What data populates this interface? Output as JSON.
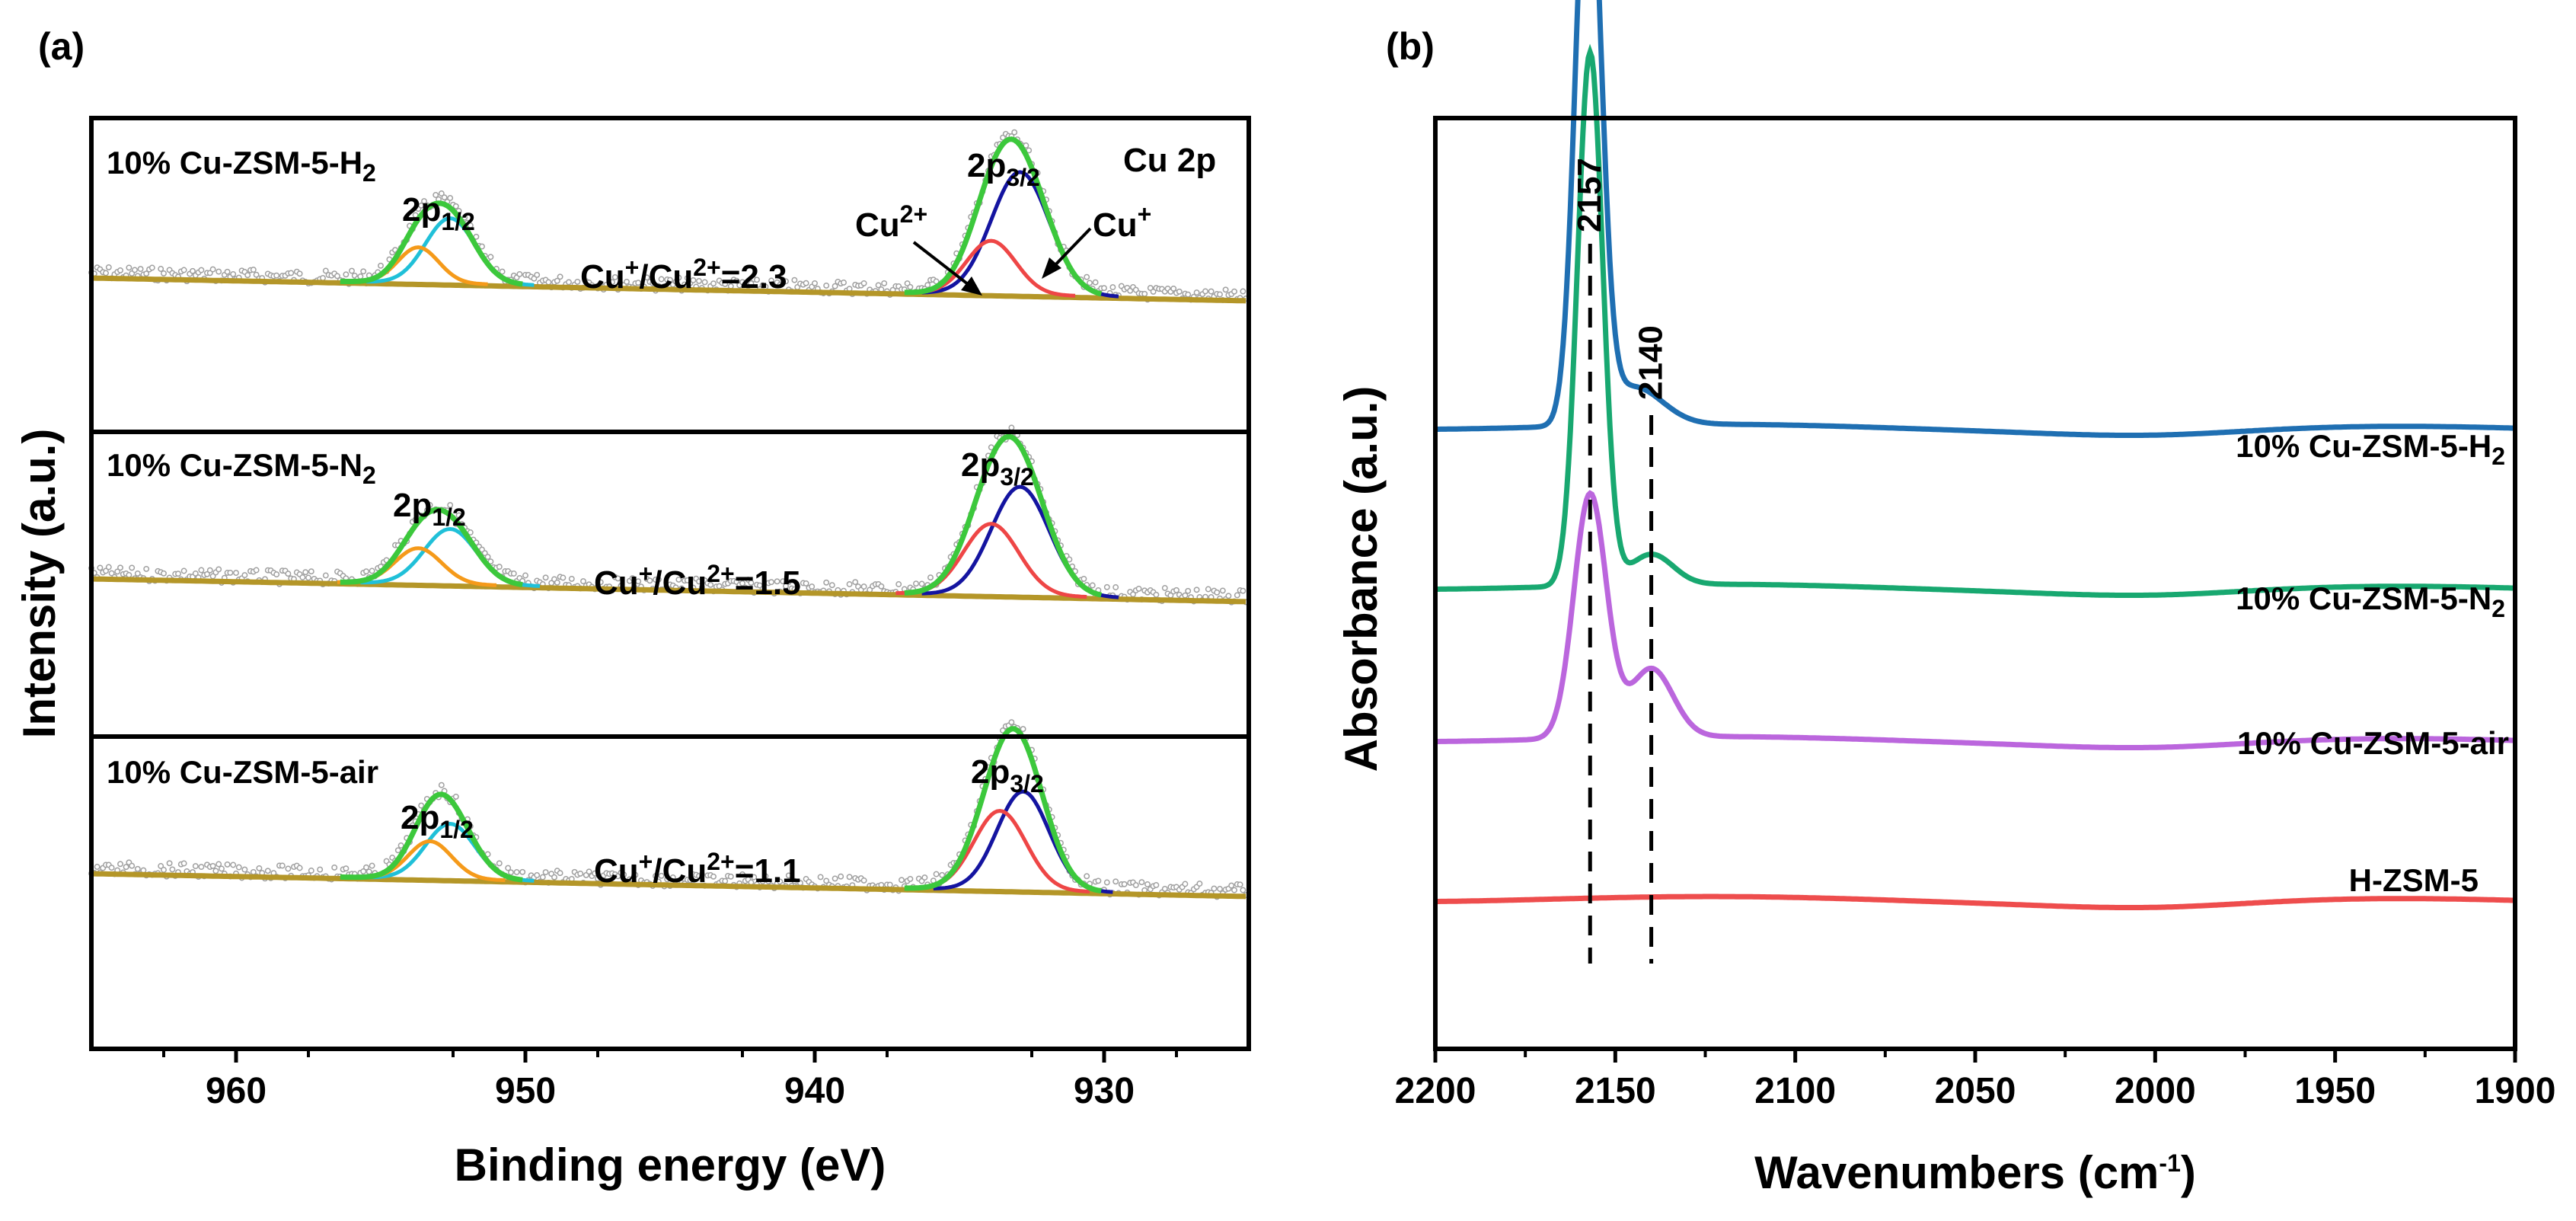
{
  "figure": {
    "panel_a_label": "(a)",
    "panel_b_label": "(b)"
  },
  "chart_data": [
    {
      "type": "line",
      "panel": "(a)",
      "title": "",
      "xlabel": "Binding energy (eV)",
      "ylabel": "Intensity (a.u.)",
      "xlim": [
        965,
        925
      ],
      "x_reversed": true,
      "xticks": [
        960,
        950,
        940,
        930
      ],
      "xtick_labels": [
        "960",
        "950",
        "940",
        "930"
      ],
      "region_label": "Cu 2p",
      "component_colors": {
        "envelope": "#3cc83c",
        "cu_plus_3_2": "#1414a0",
        "cu_2plus_3_2": "#ee4646",
        "cu_plus_1_2": "#20c0d8",
        "cu_2plus_1_2": "#f59a1a",
        "background": "#b49628",
        "raw_points": "#a0a0a0"
      },
      "annotations": {
        "cu2plus_arrow_base": "Cu",
        "cu2plus_arrow_sup": "2+",
        "cuplus_arrow_base": "Cu",
        "cuplus_arrow_sup": "+"
      },
      "series": [
        {
          "name": "10% Cu-ZSM-5-H2",
          "label_base": "10% Cu-ZSM-5-H",
          "label_sub": "2",
          "ratio_prefix": "Cu",
          "ratio_sup1": "+",
          "ratio_mid": "/Cu",
          "ratio_sup2": "2+",
          "ratio_value": "=2.3",
          "ratio": 2.3,
          "peak_3_2_base": "2p",
          "peak_3_2_sub": "3/2",
          "peak_1_2_base": "2p",
          "peak_1_2_sub": "1/2",
          "peaks": [
            {
              "component": "Cu+ 2p3/2",
              "center": 932.9,
              "height": 0.62,
              "sigma": 1.0
            },
            {
              "component": "Cu2+ 2p3/2",
              "center": 933.9,
              "height": 0.27,
              "sigma": 0.85
            },
            {
              "component": "Cu+ 2p1/2",
              "center": 952.6,
              "height": 0.33,
              "sigma": 0.85
            },
            {
              "component": "Cu2+ 2p1/2",
              "center": 953.7,
              "height": 0.18,
              "sigma": 0.7
            }
          ]
        },
        {
          "name": "10% Cu-ZSM-5-N2",
          "label_base": "10% Cu-ZSM-5-N",
          "label_sub": "2",
          "ratio_prefix": "Cu",
          "ratio_sup1": "+",
          "ratio_mid": "/Cu",
          "ratio_sup2": "2+",
          "ratio_value": "=1.5",
          "ratio": 1.5,
          "peak_3_2_base": "2p",
          "peak_3_2_sub": "3/2",
          "peak_1_2_base": "2p",
          "peak_1_2_sub": "1/2",
          "peaks": [
            {
              "component": "Cu+ 2p3/2",
              "center": 932.9,
              "height": 0.55,
              "sigma": 1.0
            },
            {
              "component": "Cu2+ 2p3/2",
              "center": 933.9,
              "height": 0.36,
              "sigma": 0.95
            },
            {
              "component": "Cu+ 2p1/2",
              "center": 952.6,
              "height": 0.28,
              "sigma": 0.9
            },
            {
              "component": "Cu2+ 2p1/2",
              "center": 953.7,
              "height": 0.18,
              "sigma": 0.8
            }
          ]
        },
        {
          "name": "10% Cu-ZSM-5-air",
          "label_base": "10% Cu-ZSM-5-air",
          "label_sub": "",
          "ratio_prefix": "Cu",
          "ratio_sup1": "+",
          "ratio_mid": "/Cu",
          "ratio_sup2": "2+",
          "ratio_value": "=1.1",
          "ratio": 1.1,
          "peak_3_2_base": "2p",
          "peak_3_2_sub": "3/2",
          "peak_1_2_base": "2p",
          "peak_1_2_sub": "1/2",
          "peaks": [
            {
              "component": "Cu+ 2p3/2",
              "center": 932.8,
              "height": 0.5,
              "sigma": 0.9
            },
            {
              "component": "Cu2+ 2p3/2",
              "center": 933.6,
              "height": 0.4,
              "sigma": 0.9
            },
            {
              "component": "Cu+ 2p1/2",
              "center": 952.6,
              "height": 0.28,
              "sigma": 0.85
            },
            {
              "component": "Cu2+ 2p1/2",
              "center": 953.3,
              "height": 0.19,
              "sigma": 0.75
            }
          ]
        }
      ]
    },
    {
      "type": "line",
      "panel": "(b)",
      "title": "",
      "xlabel_base": "Wavenumbers (cm",
      "xlabel_sup": "-1",
      "xlabel_end": ")",
      "ylabel": "Absorbance (a.u.)",
      "xlim": [
        2200,
        1900
      ],
      "x_reversed": true,
      "xticks": [
        2200,
        2150,
        2100,
        2050,
        2000,
        1950,
        1900
      ],
      "xtick_labels": [
        "2200",
        "2150",
        "2100",
        "2050",
        "2000",
        "1950",
        "1900"
      ],
      "reference_lines": [
        {
          "x": 2157,
          "label": "2157"
        },
        {
          "x": 2140,
          "label": "2140"
        }
      ],
      "series": [
        {
          "name": "10% Cu-ZSM-5-H2",
          "label_base": "10% Cu-ZSM-5-H",
          "label_sub": "2",
          "color": "#1f6fb2",
          "baseline": 0.62,
          "peaks": [
            {
              "center": 2157.5,
              "height": 0.78,
              "width": 3.5
            },
            {
              "center": 2145,
              "height": 0.05,
              "width": 8
            }
          ]
        },
        {
          "name": "10% Cu-ZSM-5-N2",
          "label_base": "10% Cu-ZSM-5-N",
          "label_sub": "2",
          "color": "#18a870",
          "baseline": 0.41,
          "peaks": [
            {
              "center": 2157,
              "height": 0.7,
              "width": 3.5
            },
            {
              "center": 2140,
              "height": 0.04,
              "width": 6
            }
          ]
        },
        {
          "name": "10% Cu-ZSM-5-air",
          "label_base": "10% Cu-ZSM-5-air",
          "label_sub": "",
          "color": "#bb66dd",
          "baseline": 0.21,
          "peaks": [
            {
              "center": 2157,
              "height": 0.32,
              "width": 4.5
            },
            {
              "center": 2140,
              "height": 0.09,
              "width": 6
            }
          ]
        },
        {
          "name": "H-ZSM-5",
          "label_base": "H-ZSM-5",
          "label_sub": "",
          "color": "#ee4d4d",
          "baseline": 0.0,
          "peaks": []
        }
      ]
    }
  ]
}
